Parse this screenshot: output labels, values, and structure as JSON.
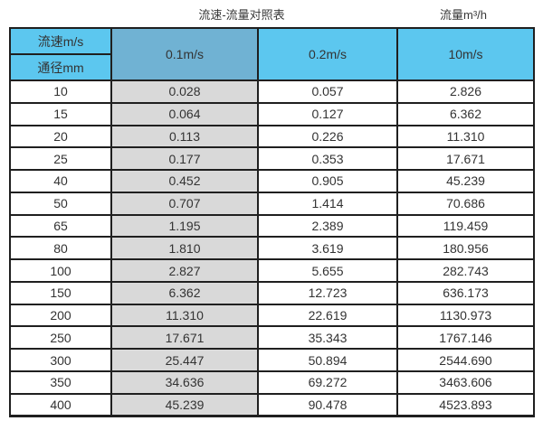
{
  "titles": {
    "left": "流速-流量对照表",
    "right": "流量m³/h"
  },
  "header": {
    "corner_top": "流速m/s",
    "corner_bottom": "通径mm",
    "columns": [
      "0.1m/s",
      "0.2m/s",
      "10m/s"
    ]
  },
  "rows": [
    [
      "10",
      "0.028",
      "0.057",
      "2.826"
    ],
    [
      "15",
      "0.064",
      "0.127",
      "6.362"
    ],
    [
      "20",
      "0.113",
      "0.226",
      "11.310"
    ],
    [
      "25",
      "0.177",
      "0.353",
      "17.671"
    ],
    [
      "40",
      "0.452",
      "0.905",
      "45.239"
    ],
    [
      "50",
      "0.707",
      "1.414",
      "70.686"
    ],
    [
      "65",
      "1.195",
      "2.389",
      "119.459"
    ],
    [
      "80",
      "1.810",
      "3.619",
      "180.956"
    ],
    [
      "100",
      "2.827",
      "5.655",
      "282.743"
    ],
    [
      "150",
      "6.362",
      "12.723",
      "636.173"
    ],
    [
      "200",
      "11.310",
      "22.619",
      "1130.973"
    ],
    [
      "250",
      "17.671",
      "35.343",
      "1767.146"
    ],
    [
      "300",
      "25.447",
      "50.894",
      "2544.690"
    ],
    [
      "350",
      "34.636",
      "69.272",
      "3463.606"
    ],
    [
      "400",
      "45.239",
      "90.478",
      "4523.893"
    ]
  ],
  "colors": {
    "header_blue": "#5cc7ef",
    "highlight_blue": "#70b2d3",
    "shaded_column": "#d9d9d9",
    "border": "#1f1f1f",
    "text": "#333333"
  },
  "chart_data": {
    "type": "table",
    "title": "流速-流量对照表",
    "unit": "流量m³/h",
    "columns_label": "流速m/s",
    "rows_label": "通径mm",
    "categories": [
      10,
      15,
      20,
      25,
      40,
      50,
      65,
      80,
      100,
      150,
      200,
      250,
      300,
      350,
      400
    ],
    "series": [
      {
        "name": "0.1m/s",
        "values": [
          0.028,
          0.064,
          0.113,
          0.177,
          0.452,
          0.707,
          1.195,
          1.81,
          2.827,
          6.362,
          11.31,
          17.671,
          25.447,
          34.636,
          45.239
        ]
      },
      {
        "name": "0.2m/s",
        "values": [
          0.057,
          0.127,
          0.226,
          0.353,
          0.905,
          1.414,
          2.389,
          3.619,
          5.655,
          12.723,
          22.619,
          35.343,
          50.894,
          69.272,
          90.478
        ]
      },
      {
        "name": "10m/s",
        "values": [
          2.826,
          6.362,
          11.31,
          17.671,
          45.239,
          70.686,
          119.459,
          180.956,
          282.743,
          636.173,
          1130.973,
          1767.146,
          2544.69,
          3463.606,
          4523.893
        ]
      }
    ]
  }
}
